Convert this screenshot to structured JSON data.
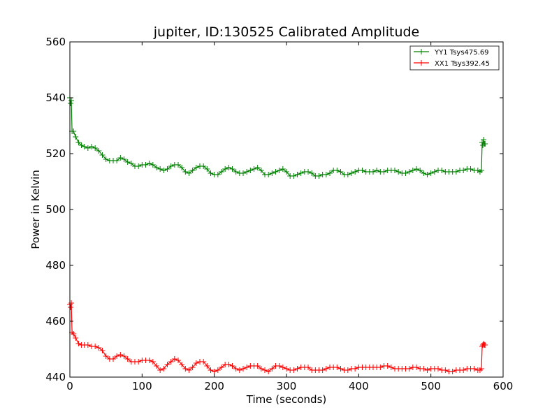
{
  "chart_data": {
    "type": "line",
    "title": "jupiter, ID:130525 Calibrated Amplitude",
    "xlabel": "Time (seconds)",
    "ylabel": "Power in Kelvin",
    "xlim": [
      0,
      600
    ],
    "ylim": [
      440,
      560
    ],
    "xticks": [
      "0",
      "100",
      "200",
      "300",
      "400",
      "500",
      "600"
    ],
    "yticks": [
      "440",
      "460",
      "480",
      "500",
      "520",
      "540",
      "560"
    ],
    "grid": false,
    "legend": "top-right",
    "marker": "plus",
    "series": [
      {
        "name": "YY1 Tsys475.69",
        "color": "#008000",
        "points": [
          [
            0,
            540
          ],
          [
            1,
            538
          ],
          [
            2,
            539
          ],
          [
            3,
            528
          ],
          [
            5,
            528
          ],
          [
            8,
            526
          ],
          [
            12,
            524
          ],
          [
            16,
            523
          ],
          [
            20,
            522.5
          ],
          [
            25,
            522
          ],
          [
            30,
            522.5
          ],
          [
            35,
            522
          ],
          [
            40,
            521
          ],
          [
            45,
            519.5
          ],
          [
            50,
            518
          ],
          [
            55,
            517.5
          ],
          [
            60,
            517.5
          ],
          [
            65,
            517.5
          ],
          [
            70,
            518.5
          ],
          [
            75,
            518
          ],
          [
            80,
            517
          ],
          [
            85,
            516.5
          ],
          [
            90,
            515.5
          ],
          [
            95,
            515.5
          ],
          [
            100,
            516
          ],
          [
            105,
            516
          ],
          [
            110,
            516.5
          ],
          [
            115,
            516
          ],
          [
            120,
            515
          ],
          [
            125,
            514.5
          ],
          [
            130,
            514
          ],
          [
            135,
            514.5
          ],
          [
            140,
            515.5
          ],
          [
            145,
            516
          ],
          [
            150,
            516
          ],
          [
            155,
            515
          ],
          [
            160,
            513.5
          ],
          [
            165,
            513
          ],
          [
            170,
            514
          ],
          [
            175,
            515
          ],
          [
            180,
            515.5
          ],
          [
            185,
            515.5
          ],
          [
            190,
            514.5
          ],
          [
            195,
            513
          ],
          [
            200,
            512.5
          ],
          [
            205,
            512.5
          ],
          [
            210,
            513.5
          ],
          [
            215,
            514.5
          ],
          [
            220,
            515
          ],
          [
            225,
            514.5
          ],
          [
            230,
            513.5
          ],
          [
            235,
            513
          ],
          [
            240,
            513
          ],
          [
            245,
            513.5
          ],
          [
            250,
            514
          ],
          [
            255,
            514.5
          ],
          [
            260,
            515
          ],
          [
            265,
            514
          ],
          [
            270,
            512.5
          ],
          [
            275,
            512.5
          ],
          [
            280,
            513
          ],
          [
            285,
            513.5
          ],
          [
            290,
            514
          ],
          [
            295,
            514.5
          ],
          [
            300,
            513.5
          ],
          [
            305,
            512
          ],
          [
            310,
            512
          ],
          [
            315,
            512.5
          ],
          [
            320,
            513
          ],
          [
            325,
            513.5
          ],
          [
            330,
            513.5
          ],
          [
            335,
            513
          ],
          [
            340,
            512
          ],
          [
            345,
            512
          ],
          [
            350,
            512.5
          ],
          [
            355,
            512.5
          ],
          [
            360,
            513
          ],
          [
            365,
            514
          ],
          [
            370,
            514
          ],
          [
            375,
            513.5
          ],
          [
            380,
            512.5
          ],
          [
            385,
            512.5
          ],
          [
            390,
            513
          ],
          [
            395,
            513.5
          ],
          [
            400,
            514
          ],
          [
            405,
            514
          ],
          [
            410,
            513.5
          ],
          [
            415,
            513.5
          ],
          [
            420,
            513.5
          ],
          [
            425,
            514
          ],
          [
            430,
            513.5
          ],
          [
            435,
            513.5
          ],
          [
            440,
            514
          ],
          [
            445,
            514
          ],
          [
            450,
            514
          ],
          [
            455,
            513.5
          ],
          [
            460,
            513
          ],
          [
            465,
            513
          ],
          [
            470,
            513.5
          ],
          [
            475,
            514
          ],
          [
            480,
            514.5
          ],
          [
            485,
            514
          ],
          [
            490,
            513
          ],
          [
            495,
            512.5
          ],
          [
            500,
            513
          ],
          [
            505,
            513.5
          ],
          [
            510,
            514
          ],
          [
            515,
            514
          ],
          [
            520,
            513.5
          ],
          [
            525,
            513.5
          ],
          [
            530,
            513.5
          ],
          [
            535,
            513.5
          ],
          [
            540,
            514
          ],
          [
            545,
            514
          ],
          [
            550,
            514.5
          ],
          [
            555,
            514.5
          ],
          [
            560,
            514
          ],
          [
            565,
            514
          ],
          [
            568,
            513.5
          ],
          [
            570,
            514
          ],
          [
            571,
            524
          ],
          [
            572,
            523
          ],
          [
            573,
            525
          ],
          [
            574,
            523.5
          ],
          [
            575,
            523.5
          ]
        ]
      },
      {
        "name": "XX1 Tsys392.45",
        "color": "#ff0000",
        "points": [
          [
            0,
            466
          ],
          [
            1,
            465
          ],
          [
            2,
            466.5
          ],
          [
            3,
            456
          ],
          [
            5,
            455.5
          ],
          [
            8,
            454
          ],
          [
            12,
            452
          ],
          [
            16,
            451.5
          ],
          [
            20,
            451.5
          ],
          [
            25,
            451.5
          ],
          [
            30,
            451
          ],
          [
            35,
            451
          ],
          [
            40,
            450.5
          ],
          [
            45,
            449.5
          ],
          [
            50,
            447.5
          ],
          [
            55,
            446.5
          ],
          [
            60,
            446.5
          ],
          [
            65,
            447.5
          ],
          [
            70,
            448
          ],
          [
            75,
            447.5
          ],
          [
            80,
            446.5
          ],
          [
            85,
            445.5
          ],
          [
            90,
            445.5
          ],
          [
            95,
            445.5
          ],
          [
            100,
            446
          ],
          [
            105,
            446
          ],
          [
            110,
            446
          ],
          [
            115,
            445.5
          ],
          [
            120,
            444
          ],
          [
            125,
            442.5
          ],
          [
            130,
            443
          ],
          [
            135,
            444.5
          ],
          [
            140,
            445.5
          ],
          [
            145,
            446.5
          ],
          [
            150,
            446
          ],
          [
            155,
            444.5
          ],
          [
            160,
            443
          ],
          [
            165,
            442.5
          ],
          [
            170,
            443.5
          ],
          [
            175,
            445
          ],
          [
            180,
            445.5
          ],
          [
            185,
            445.5
          ],
          [
            190,
            444
          ],
          [
            195,
            442.5
          ],
          [
            200,
            442
          ],
          [
            205,
            442.5
          ],
          [
            210,
            443.5
          ],
          [
            215,
            444.5
          ],
          [
            220,
            444.5
          ],
          [
            225,
            444
          ],
          [
            230,
            443
          ],
          [
            235,
            442.5
          ],
          [
            240,
            443
          ],
          [
            245,
            443.5
          ],
          [
            250,
            444
          ],
          [
            255,
            444
          ],
          [
            260,
            444
          ],
          [
            265,
            443
          ],
          [
            270,
            442.5
          ],
          [
            275,
            442
          ],
          [
            280,
            443
          ],
          [
            285,
            444
          ],
          [
            290,
            444
          ],
          [
            295,
            443.5
          ],
          [
            300,
            443
          ],
          [
            305,
            442.5
          ],
          [
            310,
            442.5
          ],
          [
            315,
            443
          ],
          [
            320,
            443.5
          ],
          [
            325,
            443.5
          ],
          [
            330,
            443.5
          ],
          [
            335,
            442.5
          ],
          [
            340,
            442.5
          ],
          [
            345,
            442.5
          ],
          [
            350,
            442.5
          ],
          [
            355,
            443
          ],
          [
            360,
            443.5
          ],
          [
            365,
            443.5
          ],
          [
            370,
            443.5
          ],
          [
            375,
            443
          ],
          [
            380,
            442.5
          ],
          [
            385,
            442.5
          ],
          [
            390,
            443
          ],
          [
            395,
            443
          ],
          [
            400,
            443.5
          ],
          [
            405,
            443.5
          ],
          [
            410,
            443.5
          ],
          [
            415,
            443.5
          ],
          [
            420,
            443.5
          ],
          [
            425,
            443.5
          ],
          [
            430,
            443.5
          ],
          [
            435,
            444
          ],
          [
            440,
            444
          ],
          [
            445,
            443.5
          ],
          [
            450,
            443
          ],
          [
            455,
            443
          ],
          [
            460,
            443
          ],
          [
            465,
            443
          ],
          [
            470,
            443
          ],
          [
            475,
            443.5
          ],
          [
            480,
            443.5
          ],
          [
            485,
            443
          ],
          [
            490,
            443
          ],
          [
            495,
            442.5
          ],
          [
            500,
            443
          ],
          [
            505,
            443
          ],
          [
            510,
            443
          ],
          [
            515,
            442.5
          ],
          [
            520,
            442.5
          ],
          [
            525,
            442
          ],
          [
            530,
            442
          ],
          [
            535,
            442.5
          ],
          [
            540,
            442.5
          ],
          [
            545,
            442.5
          ],
          [
            550,
            443
          ],
          [
            555,
            443
          ],
          [
            560,
            443
          ],
          [
            565,
            442.5
          ],
          [
            568,
            442.5
          ],
          [
            570,
            443
          ],
          [
            571,
            451
          ],
          [
            572,
            451.5
          ],
          [
            573,
            452
          ],
          [
            574,
            451.5
          ],
          [
            575,
            451.5
          ]
        ]
      }
    ]
  }
}
